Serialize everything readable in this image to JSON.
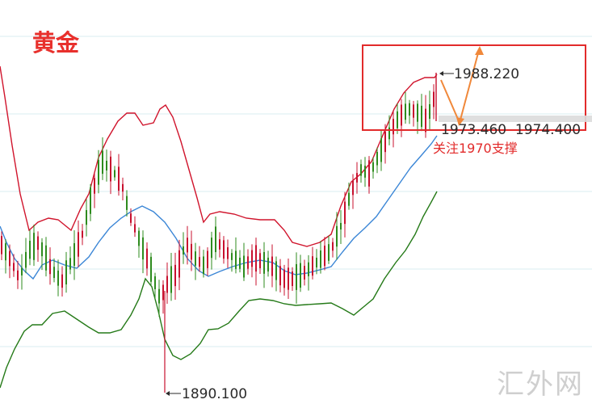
{
  "title": "黄金",
  "watermark": "汇外网",
  "colors": {
    "up": "#c8102e",
    "down": "#2e8b1e",
    "upper_band": "#d0142c",
    "middle_band": "#3b86d6",
    "lower_band": "#257a18",
    "grid": "#d9ecf2",
    "highlight_box": "#e22b2b",
    "arrow": "#f0883a",
    "annotation_text": "#e22b2b",
    "label_text": "#2a2a2a"
  },
  "chart_data": {
    "type": "candlestick",
    "series": [
      {
        "name": "upper_band",
        "values": []
      },
      {
        "name": "middle_band",
        "values": []
      },
      {
        "name": "lower_band",
        "values": []
      }
    ],
    "annotations": {
      "high": "1988.220",
      "low": "1890.100",
      "levels": "1973.460  1974.400",
      "support_note": "关注1970支撑"
    },
    "ylim": [
      1880,
      2005
    ],
    "grid": true,
    "legend": "none"
  }
}
